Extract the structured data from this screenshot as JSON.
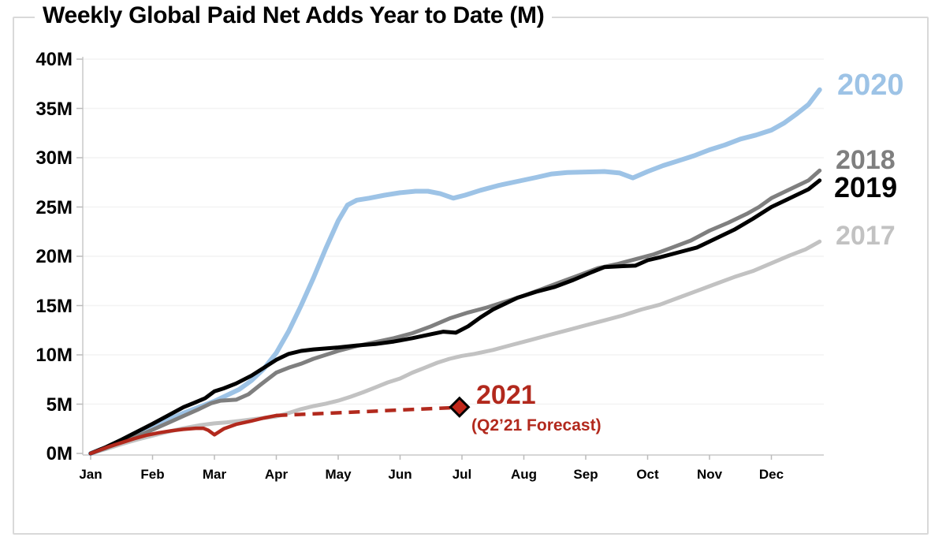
{
  "header": {
    "title": "Weekly Global Paid Net Adds Year to Date (M)"
  },
  "chart_data": {
    "type": "line",
    "title": "Weekly Global Paid Net Adds Year to Date (M)",
    "x_axis": {
      "tick_labels": [
        "Jan",
        "Feb",
        "Mar",
        "Apr",
        "May",
        "Jun",
        "Jul",
        "Aug",
        "Sep",
        "Oct",
        "Nov",
        "Dec"
      ],
      "unit": "month"
    },
    "y_axis": {
      "tick_labels": [
        "0M",
        "5M",
        "10M",
        "15M",
        "20M",
        "25M",
        "30M",
        "35M",
        "40M"
      ],
      "min": 0,
      "max": 40,
      "step": 5,
      "unit": "millions of paid net adds"
    },
    "grid": "horizontal, very light, every 5M",
    "legend_position": "end-of-line labels at right",
    "series": [
      {
        "name": "2017",
        "color": "#C2C2C2",
        "style": "solid",
        "end_value_m": 21.5,
        "points": [
          [
            0,
            0
          ],
          [
            0.25,
            0.45
          ],
          [
            0.5,
            0.95
          ],
          [
            0.75,
            1.4
          ],
          [
            1,
            1.8
          ],
          [
            1.25,
            2.2
          ],
          [
            1.5,
            2.55
          ],
          [
            1.75,
            2.85
          ],
          [
            2,
            3.05
          ],
          [
            2.2,
            3.15
          ],
          [
            2.4,
            3.3
          ],
          [
            2.6,
            3.45
          ],
          [
            2.8,
            3.6
          ],
          [
            3,
            3.75
          ],
          [
            3.2,
            4.1
          ],
          [
            3.4,
            4.5
          ],
          [
            3.6,
            4.8
          ],
          [
            3.8,
            5.05
          ],
          [
            4,
            5.35
          ],
          [
            4.2,
            5.75
          ],
          [
            4.4,
            6.2
          ],
          [
            4.6,
            6.7
          ],
          [
            4.8,
            7.2
          ],
          [
            5,
            7.6
          ],
          [
            5.2,
            8.2
          ],
          [
            5.4,
            8.7
          ],
          [
            5.6,
            9.2
          ],
          [
            5.8,
            9.6
          ],
          [
            6,
            9.9
          ],
          [
            6.2,
            10.1
          ],
          [
            6.5,
            10.5
          ],
          [
            6.8,
            11
          ],
          [
            7.1,
            11.5
          ],
          [
            7.4,
            12
          ],
          [
            7.7,
            12.5
          ],
          [
            8,
            13
          ],
          [
            8.3,
            13.5
          ],
          [
            8.6,
            14
          ],
          [
            8.9,
            14.6
          ],
          [
            9.2,
            15.1
          ],
          [
            9.5,
            15.8
          ],
          [
            9.8,
            16.5
          ],
          [
            10.1,
            17.2
          ],
          [
            10.4,
            17.9
          ],
          [
            10.7,
            18.5
          ],
          [
            11,
            19.3
          ],
          [
            11.3,
            20.1
          ],
          [
            11.55,
            20.7
          ],
          [
            11.78,
            21.5
          ]
        ]
      },
      {
        "name": "2018",
        "color": "#7F7F7F",
        "style": "solid",
        "end_value_m": 28.7,
        "points": [
          [
            0,
            0
          ],
          [
            0.25,
            0.55
          ],
          [
            0.5,
            1.15
          ],
          [
            0.75,
            1.75
          ],
          [
            1,
            2.4
          ],
          [
            1.25,
            3.1
          ],
          [
            1.5,
            3.8
          ],
          [
            1.75,
            4.5
          ],
          [
            1.95,
            5.1
          ],
          [
            2.1,
            5.35
          ],
          [
            2.35,
            5.45
          ],
          [
            2.55,
            6
          ],
          [
            2.75,
            7
          ],
          [
            3,
            8.2
          ],
          [
            3.2,
            8.7
          ],
          [
            3.4,
            9.1
          ],
          [
            3.6,
            9.6
          ],
          [
            3.8,
            10
          ],
          [
            4,
            10.4
          ],
          [
            4.3,
            10.9
          ],
          [
            4.6,
            11.3
          ],
          [
            4.9,
            11.7
          ],
          [
            5.2,
            12.2
          ],
          [
            5.5,
            12.9
          ],
          [
            5.8,
            13.7
          ],
          [
            6.1,
            14.3
          ],
          [
            6.4,
            14.8
          ],
          [
            6.7,
            15.4
          ],
          [
            7,
            16
          ],
          [
            7.3,
            16.7
          ],
          [
            7.6,
            17.4
          ],
          [
            7.9,
            18.1
          ],
          [
            8.2,
            18.8
          ],
          [
            8.5,
            19.2
          ],
          [
            8.8,
            19.7
          ],
          [
            9.1,
            20.2
          ],
          [
            9.4,
            20.9
          ],
          [
            9.7,
            21.6
          ],
          [
            10,
            22.6
          ],
          [
            10.3,
            23.4
          ],
          [
            10.6,
            24.3
          ],
          [
            10.8,
            25
          ],
          [
            11,
            25.9
          ],
          [
            11.2,
            26.5
          ],
          [
            11.4,
            27.1
          ],
          [
            11.6,
            27.7
          ],
          [
            11.78,
            28.7
          ]
        ]
      },
      {
        "name": "2019",
        "color": "#000000",
        "style": "solid",
        "end_value_m": 27.7,
        "points": [
          [
            0,
            0
          ],
          [
            0.25,
            0.65
          ],
          [
            0.5,
            1.4
          ],
          [
            0.75,
            2.2
          ],
          [
            1,
            3
          ],
          [
            1.25,
            3.85
          ],
          [
            1.5,
            4.7
          ],
          [
            1.7,
            5.2
          ],
          [
            1.85,
            5.6
          ],
          [
            2,
            6.3
          ],
          [
            2.15,
            6.6
          ],
          [
            2.35,
            7.1
          ],
          [
            2.6,
            7.9
          ],
          [
            2.8,
            8.7
          ],
          [
            3,
            9.5
          ],
          [
            3.2,
            10.1
          ],
          [
            3.4,
            10.4
          ],
          [
            3.6,
            10.55
          ],
          [
            3.8,
            10.65
          ],
          [
            4,
            10.75
          ],
          [
            4.3,
            10.95
          ],
          [
            4.6,
            11.1
          ],
          [
            4.9,
            11.35
          ],
          [
            5.2,
            11.7
          ],
          [
            5.5,
            12.1
          ],
          [
            5.7,
            12.35
          ],
          [
            5.9,
            12.25
          ],
          [
            6.1,
            12.9
          ],
          [
            6.3,
            13.8
          ],
          [
            6.5,
            14.6
          ],
          [
            6.7,
            15.2
          ],
          [
            6.9,
            15.8
          ],
          [
            7.2,
            16.4
          ],
          [
            7.5,
            16.9
          ],
          [
            7.8,
            17.6
          ],
          [
            8.1,
            18.4
          ],
          [
            8.3,
            18.9
          ],
          [
            8.6,
            19
          ],
          [
            8.8,
            19.05
          ],
          [
            9,
            19.6
          ],
          [
            9.2,
            19.9
          ],
          [
            9.5,
            20.4
          ],
          [
            9.8,
            20.9
          ],
          [
            10.1,
            21.8
          ],
          [
            10.4,
            22.7
          ],
          [
            10.7,
            23.8
          ],
          [
            11,
            25
          ],
          [
            11.3,
            25.9
          ],
          [
            11.6,
            26.8
          ],
          [
            11.78,
            27.7
          ]
        ]
      },
      {
        "name": "2020",
        "color": "#9DC3E6",
        "style": "solid",
        "end_value_m": 36.9,
        "points": [
          [
            0,
            0
          ],
          [
            0.25,
            0.6
          ],
          [
            0.5,
            1.25
          ],
          [
            0.75,
            1.95
          ],
          [
            1,
            2.7
          ],
          [
            1.25,
            3.4
          ],
          [
            1.5,
            4.1
          ],
          [
            1.75,
            4.7
          ],
          [
            2,
            5.3
          ],
          [
            2.2,
            5.9
          ],
          [
            2.4,
            6.5
          ],
          [
            2.6,
            7.4
          ],
          [
            2.8,
            8.6
          ],
          [
            3,
            10.2
          ],
          [
            3.2,
            12.4
          ],
          [
            3.4,
            15
          ],
          [
            3.6,
            17.8
          ],
          [
            3.8,
            20.8
          ],
          [
            4,
            23.6
          ],
          [
            4.15,
            25.2
          ],
          [
            4.3,
            25.7
          ],
          [
            4.5,
            25.9
          ],
          [
            4.75,
            26.2
          ],
          [
            5,
            26.45
          ],
          [
            5.25,
            26.6
          ],
          [
            5.45,
            26.6
          ],
          [
            5.65,
            26.35
          ],
          [
            5.86,
            25.9
          ],
          [
            6.05,
            26.2
          ],
          [
            6.3,
            26.7
          ],
          [
            6.6,
            27.2
          ],
          [
            6.9,
            27.6
          ],
          [
            7.2,
            28
          ],
          [
            7.45,
            28.35
          ],
          [
            7.7,
            28.5
          ],
          [
            8,
            28.55
          ],
          [
            8.3,
            28.6
          ],
          [
            8.55,
            28.45
          ],
          [
            8.76,
            27.95
          ],
          [
            9,
            28.6
          ],
          [
            9.25,
            29.2
          ],
          [
            9.5,
            29.7
          ],
          [
            9.75,
            30.2
          ],
          [
            10,
            30.8
          ],
          [
            10.25,
            31.3
          ],
          [
            10.5,
            31.9
          ],
          [
            10.75,
            32.3
          ],
          [
            11,
            32.8
          ],
          [
            11.2,
            33.5
          ],
          [
            11.4,
            34.4
          ],
          [
            11.6,
            35.4
          ],
          [
            11.78,
            36.9
          ]
        ]
      },
      {
        "name": "2021",
        "color": "#B2291D",
        "style": "solid actuals, then dashed forecast",
        "end_value_m": 4.7,
        "points": [
          [
            0,
            0
          ],
          [
            0.15,
            0.35
          ],
          [
            0.3,
            0.7
          ],
          [
            0.5,
            1.1
          ],
          [
            0.7,
            1.5
          ],
          [
            0.9,
            1.85
          ],
          [
            1.1,
            2.1
          ],
          [
            1.3,
            2.3
          ],
          [
            1.5,
            2.45
          ],
          [
            1.7,
            2.55
          ],
          [
            1.82,
            2.55
          ],
          [
            1.9,
            2.35
          ],
          [
            2,
            1.9
          ],
          [
            2.15,
            2.5
          ],
          [
            2.35,
            2.95
          ],
          [
            2.6,
            3.3
          ],
          [
            2.8,
            3.6
          ],
          [
            3,
            3.85
          ]
        ],
        "forecast_points": [
          [
            3,
            3.85
          ],
          [
            5.88,
            4.65
          ]
        ],
        "marker": {
          "shape": "diamond",
          "fill": "#C1271A",
          "outline": "#000000",
          "month": 5.96,
          "value_m": 4.7
        }
      }
    ],
    "annotations": [
      {
        "text": "2021",
        "color": "#B2291D"
      },
      {
        "text": "(Q2’21 Forecast)",
        "color": "#B2291D"
      }
    ],
    "forecast_note": "(Q2’21 Forecast)"
  },
  "colors": {
    "frame_border": "#D9D9D9",
    "gridline": "#F3F3F3",
    "axis_line": "#C8C8C8",
    "tick": "#BBBBBB",
    "text": "#000000"
  }
}
